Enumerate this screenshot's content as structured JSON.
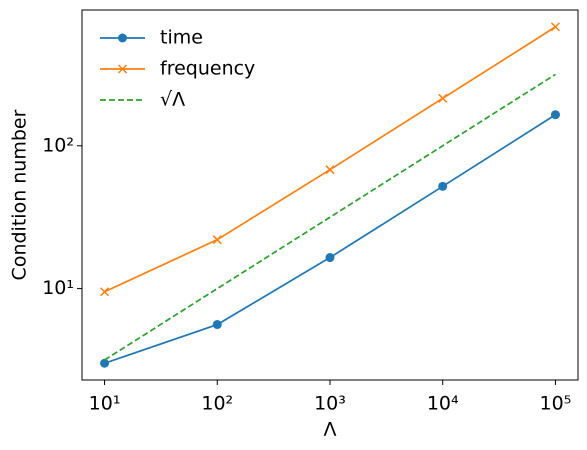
{
  "chart_data": {
    "type": "line",
    "x_label": "Λ",
    "y_label": "Condition number",
    "x": [
      10,
      100,
      1000,
      10000,
      100000
    ],
    "series": [
      {
        "name": "time",
        "color": "#1f77b4",
        "marker": "circle",
        "linestyle": "solid",
        "values": [
          3.0,
          5.6,
          16.5,
          52,
          165
        ]
      },
      {
        "name": "frequency",
        "color": "#ff7f0e",
        "marker": "x",
        "linestyle": "solid",
        "values": [
          9.5,
          22,
          68,
          215,
          680
        ]
      },
      {
        "name": "√Λ",
        "color": "#2ca02c",
        "marker": "none",
        "linestyle": "dashed",
        "values": [
          3.16,
          10,
          31.6,
          100,
          316
        ]
      }
    ],
    "x_log": true,
    "y_log": true,
    "xlim": [
      6.31,
      158489
    ],
    "ylim": [
      2.29,
      893
    ],
    "xticks": [
      {
        "value": 10,
        "label": "10¹"
      },
      {
        "value": 100,
        "label": "10²"
      },
      {
        "value": 1000,
        "label": "10³"
      },
      {
        "value": 10000,
        "label": "10⁴"
      },
      {
        "value": 100000,
        "label": "10⁵"
      }
    ],
    "yticks": [
      {
        "value": 10,
        "label": "10¹"
      },
      {
        "value": 100,
        "label": "10²"
      }
    ],
    "legend": "upper left",
    "grid": false
  }
}
